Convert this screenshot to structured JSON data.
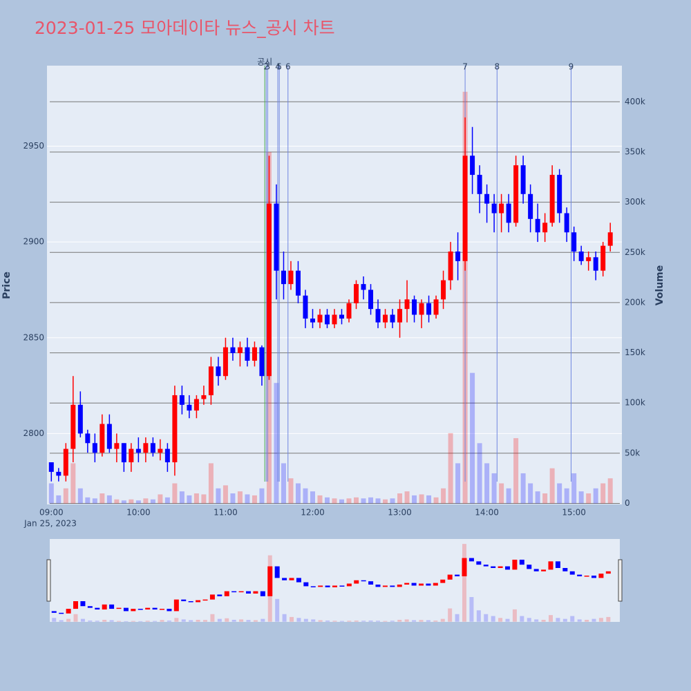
{
  "chart_data": {
    "type": "candlestick",
    "title": "2023-01-25 모아데이타 뉴스_공시 차트",
    "ytitle": "Price",
    "y2title": "Volume",
    "x_sublabel": "Jan 25, 2023",
    "up_color": "#ff0000",
    "down_color": "#0000ff",
    "title_color": "#e8556a",
    "x": [
      "09:00",
      "09:05",
      "09:10",
      "09:15",
      "09:20",
      "09:25",
      "09:30",
      "09:35",
      "09:40",
      "09:45",
      "09:50",
      "09:55",
      "10:00",
      "10:05",
      "10:10",
      "10:15",
      "10:20",
      "10:25",
      "10:30",
      "10:35",
      "10:40",
      "10:45",
      "10:50",
      "10:55",
      "11:00",
      "11:05",
      "11:10",
      "11:15",
      "11:20",
      "11:25",
      "11:30",
      "11:35",
      "11:40",
      "11:45",
      "11:50",
      "11:55",
      "12:00",
      "12:05",
      "12:10",
      "12:15",
      "12:20",
      "12:25",
      "12:30",
      "12:35",
      "12:40",
      "12:45",
      "12:50",
      "12:55",
      "13:00",
      "13:05",
      "13:10",
      "13:15",
      "13:20",
      "13:25",
      "13:30",
      "13:35",
      "13:40",
      "13:45",
      "13:50",
      "13:55",
      "14:00",
      "14:05",
      "14:10",
      "14:15",
      "14:20",
      "14:25",
      "14:30",
      "14:35",
      "14:40",
      "14:45",
      "14:50",
      "14:55",
      "15:00",
      "15:05",
      "15:10",
      "15:15",
      "15:20",
      "15:25"
    ],
    "open": [
      2785,
      2780,
      2778,
      2792,
      2815,
      2800,
      2795,
      2790,
      2805,
      2792,
      2795,
      2785,
      2792,
      2790,
      2795,
      2790,
      2792,
      2785,
      2820,
      2815,
      2812,
      2818,
      2820,
      2835,
      2830,
      2845,
      2842,
      2845,
      2838,
      2845,
      2830,
      2920,
      2885,
      2878,
      2885,
      2872,
      2860,
      2858,
      2862,
      2857,
      2862,
      2860,
      2868,
      2878,
      2875,
      2865,
      2858,
      2862,
      2858,
      2865,
      2870,
      2862,
      2868,
      2862,
      2870,
      2880,
      2895,
      2890,
      2945,
      2935,
      2925,
      2920,
      2915,
      2920,
      2910,
      2940,
      2925,
      2912,
      2905,
      2910,
      2935,
      2915,
      2905,
      2895,
      2890,
      2892,
      2885,
      2898
    ],
    "high": [
      2785,
      2782,
      2795,
      2830,
      2822,
      2802,
      2800,
      2810,
      2810,
      2800,
      2795,
      2795,
      2798,
      2798,
      2798,
      2797,
      2795,
      2825,
      2825,
      2820,
      2820,
      2825,
      2840,
      2840,
      2850,
      2850,
      2848,
      2850,
      2848,
      2846,
      2945,
      2930,
      2895,
      2890,
      2890,
      2875,
      2865,
      2865,
      2865,
      2865,
      2865,
      2870,
      2880,
      2882,
      2878,
      2870,
      2865,
      2865,
      2870,
      2880,
      2872,
      2870,
      2872,
      2872,
      2885,
      2900,
      2905,
      2965,
      2960,
      2940,
      2930,
      2925,
      2925,
      2925,
      2945,
      2945,
      2930,
      2920,
      2915,
      2940,
      2938,
      2918,
      2908,
      2898,
      2895,
      2895,
      2900,
      2910
    ],
    "low": [
      2775,
      2775,
      2775,
      2785,
      2798,
      2790,
      2785,
      2788,
      2790,
      2785,
      2780,
      2780,
      2785,
      2785,
      2788,
      2786,
      2780,
      2778,
      2810,
      2808,
      2808,
      2815,
      2815,
      2825,
      2828,
      2838,
      2835,
      2835,
      2835,
      2825,
      2828,
      2870,
      2870,
      2875,
      2868,
      2855,
      2855,
      2855,
      2855,
      2855,
      2857,
      2858,
      2865,
      2870,
      2862,
      2855,
      2855,
      2855,
      2850,
      2858,
      2858,
      2855,
      2858,
      2860,
      2865,
      2875,
      2880,
      2885,
      2925,
      2915,
      2910,
      2905,
      2905,
      2905,
      2908,
      2920,
      2905,
      2900,
      2900,
      2908,
      2910,
      2900,
      2890,
      2888,
      2885,
      2880,
      2882,
      2895
    ],
    "close": [
      2780,
      2778,
      2792,
      2815,
      2800,
      2795,
      2790,
      2805,
      2792,
      2795,
      2785,
      2792,
      2790,
      2795,
      2790,
      2792,
      2785,
      2820,
      2815,
      2812,
      2818,
      2820,
      2835,
      2830,
      2845,
      2842,
      2845,
      2838,
      2845,
      2830,
      2920,
      2885,
      2878,
      2885,
      2872,
      2860,
      2858,
      2862,
      2857,
      2862,
      2860,
      2868,
      2878,
      2875,
      2865,
      2858,
      2862,
      2858,
      2865,
      2870,
      2862,
      2868,
      2862,
      2870,
      2880,
      2895,
      2890,
      2945,
      2935,
      2925,
      2920,
      2915,
      2920,
      2910,
      2940,
      2925,
      2912,
      2905,
      2910,
      2935,
      2915,
      2905,
      2895,
      2890,
      2892,
      2885,
      2898,
      2905
    ],
    "volume": [
      20000,
      8000,
      15000,
      40000,
      15000,
      6000,
      5000,
      10000,
      8000,
      4000,
      3000,
      4000,
      3000,
      5000,
      4000,
      9000,
      6000,
      20000,
      12000,
      8000,
      10000,
      9000,
      40000,
      15000,
      18000,
      10000,
      12000,
      9000,
      8000,
      15000,
      350000,
      120000,
      40000,
      25000,
      20000,
      15000,
      12000,
      8000,
      6000,
      5000,
      4000,
      5000,
      6000,
      5000,
      6000,
      5000,
      4000,
      5000,
      10000,
      12000,
      8000,
      9000,
      8000,
      6000,
      15000,
      70000,
      40000,
      410000,
      130000,
      60000,
      40000,
      30000,
      20000,
      15000,
      65000,
      30000,
      20000,
      12000,
      10000,
      35000,
      20000,
      15000,
      30000,
      12000,
      10000,
      15000,
      20000,
      25000
    ],
    "xlim": [
      "08:57",
      "15:33"
    ],
    "xticks": [
      "09:00",
      "10:00",
      "11:00",
      "12:00",
      "13:00",
      "14:00",
      "15:00"
    ],
    "ylim": [
      2763,
      2992
    ],
    "yticks": [
      2800,
      2850,
      2900,
      2950
    ],
    "y2lim": [
      -1000,
      436000
    ],
    "y2ticks": [
      0,
      {
        "value": 50000,
        "label": "50k"
      },
      {
        "value": 100000,
        "label": "100k"
      },
      {
        "value": 150000,
        "label": "150k"
      },
      {
        "value": 200000,
        "label": "200k"
      },
      {
        "value": 250000,
        "label": "250k"
      },
      {
        "value": 300000,
        "label": "300k"
      },
      {
        "value": 350000,
        "label": "350k"
      },
      {
        "value": 400000,
        "label": "400k"
      }
    ],
    "markers": [
      {
        "label": "공시",
        "time": "11:27",
        "color": "#4caf50"
      },
      {
        "label": "2",
        "time": "11:28",
        "color": "#6f86e0"
      },
      {
        "label": "3",
        "time": "11:29",
        "color": "#6f86e0"
      },
      {
        "label": "4",
        "time": "11:36",
        "color": "#6f86e0"
      },
      {
        "label": "5",
        "time": "11:37",
        "color": "#6f86e0"
      },
      {
        "label": "6",
        "time": "11:43",
        "color": "#6f86e0"
      },
      {
        "label": "7",
        "time": "13:45",
        "color": "#6f86e0"
      },
      {
        "label": "8",
        "time": "14:07",
        "color": "#6f86e0"
      },
      {
        "label": "9",
        "time": "14:58",
        "color": "#6f86e0"
      }
    ],
    "grid": true
  }
}
